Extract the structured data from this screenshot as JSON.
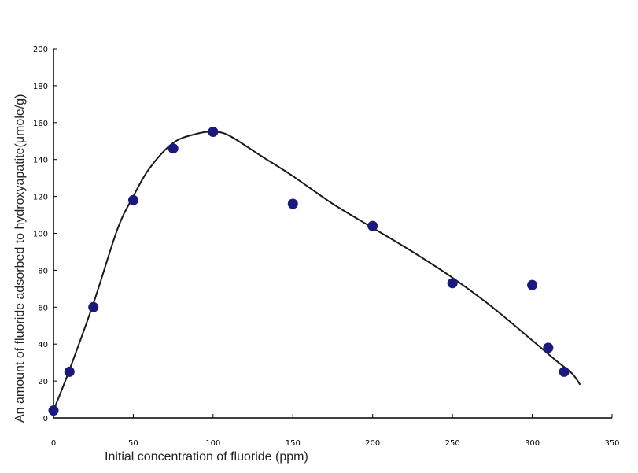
{
  "chart_data": {
    "type": "scatter",
    "title": "",
    "xlabel": "Initial concentration of fluoride (ppm)",
    "ylabel": "An amount of fluoride adsorbed to hydroxyapatite(μmole/g)",
    "xlim": [
      0,
      350
    ],
    "ylim": [
      0,
      200
    ],
    "x_ticks": [
      0,
      50,
      100,
      150,
      200,
      250,
      300,
      350
    ],
    "x_tick_labels": [
      "0",
      "50",
      "100",
      "150",
      "200",
      "250",
      "300",
      "350"
    ],
    "y_ticks": [
      0,
      20,
      40,
      60,
      80,
      100,
      120,
      140,
      160,
      180,
      200
    ],
    "y_tick_labels": [
      "0",
      "20",
      "40",
      "60",
      "80",
      "100",
      "120",
      "140",
      "160",
      "180",
      "200"
    ],
    "grid": false,
    "series": [
      {
        "type": "scatter",
        "x": [
          0,
          10,
          25,
          50,
          75,
          100,
          150,
          200,
          250,
          300,
          310,
          320
        ],
        "y": [
          4,
          25,
          60,
          118,
          146,
          155,
          116,
          104,
          73,
          72,
          38,
          25
        ]
      },
      {
        "type": "line",
        "x": [
          0,
          10,
          25,
          40,
          50,
          60,
          75,
          90,
          100,
          110,
          130,
          150,
          175,
          200,
          225,
          250,
          275,
          300,
          315,
          325,
          330
        ],
        "y": [
          4,
          26,
          62,
          102,
          120,
          135,
          149,
          154,
          155,
          153,
          142,
          131,
          116,
          103,
          90,
          76,
          60,
          42,
          31,
          24,
          18
        ]
      }
    ],
    "colors": {
      "marker": "#1a1a7e",
      "curve": "#1a1a1a",
      "axis": "#000000"
    }
  }
}
